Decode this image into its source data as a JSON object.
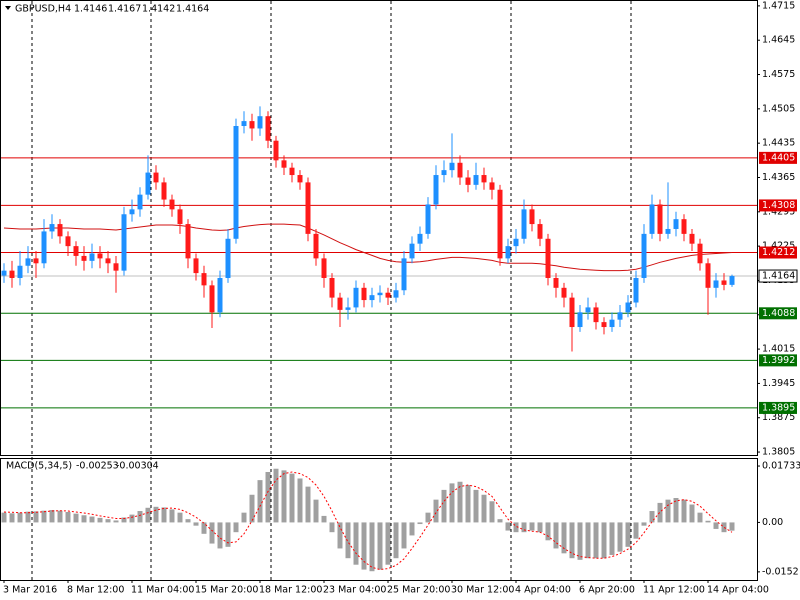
{
  "chart_data": {
    "type": "candlestick",
    "symbol": "GBPUSD,H4",
    "x": [
      "3 Mar 2016",
      null,
      null,
      null,
      null,
      null,
      null,
      null,
      "8 Mar 12:00",
      null,
      null,
      null,
      null,
      null,
      null,
      null,
      "11 Mar 04:00",
      null,
      null,
      null,
      null,
      null,
      null,
      null,
      "15 Mar 20:00",
      null,
      null,
      null,
      null,
      null,
      null,
      null,
      "18 Mar 12:00",
      null,
      null,
      null,
      null,
      null,
      null,
      null,
      "23 Mar 04:00",
      null,
      null,
      null,
      null,
      null,
      null,
      null,
      "25 Mar 20:00",
      null,
      null,
      null,
      null,
      null,
      null,
      null,
      "30 Mar 12:00",
      null,
      null,
      null,
      null,
      null,
      null,
      null,
      "4 Apr 04:00",
      null,
      null,
      null,
      null,
      null,
      null,
      null,
      "6 Apr 20:00",
      null,
      null,
      null,
      null,
      null,
      null,
      null,
      "11 Apr 12:00",
      null,
      null,
      null,
      null,
      null,
      null,
      null,
      "14 Apr 04:00",
      null,
      null,
      null
    ],
    "open": [
      1.4165,
      1.4175,
      1.416,
      1.4185,
      1.42,
      1.419,
      1.4255,
      1.427,
      1.4245,
      1.4225,
      1.4205,
      1.4195,
      1.421,
      1.42,
      1.419,
      1.4175,
      1.429,
      1.43,
      1.433,
      1.4375,
      1.4355,
      1.432,
      1.43,
      1.427,
      1.42,
      1.417,
      1.4145,
      1.409,
      1.416,
      1.424,
      1.447,
      1.448,
      1.4465,
      1.449,
      1.444,
      1.44,
      1.4385,
      1.437,
      1.4355,
      1.425,
      1.42,
      1.416,
      1.412,
      1.4095,
      1.41,
      1.414,
      1.4115,
      1.4125,
      1.413,
      1.412,
      1.4135,
      1.42,
      1.423,
      1.425,
      1.431,
      1.437,
      1.438,
      1.4395,
      1.4365,
      1.435,
      1.437,
      1.4355,
      1.434,
      1.42,
      1.4225,
      1.424,
      1.43,
      1.427,
      1.424,
      1.416,
      1.414,
      1.412,
      1.406,
      1.409,
      1.41,
      1.407,
      1.406,
      1.4075,
      1.409,
      1.411,
      1.416,
      1.425,
      1.431,
      1.425,
      1.426,
      1.428,
      1.425,
      1.423,
      1.419,
      1.414,
      1.4155,
      1.4146
    ],
    "high": [
      1.419,
      1.4195,
      1.4215,
      1.4225,
      1.4215,
      1.428,
      1.429,
      1.428,
      1.4255,
      1.4235,
      1.4225,
      1.423,
      1.4225,
      1.4215,
      1.4205,
      1.4305,
      1.432,
      1.4345,
      1.441,
      1.439,
      1.4365,
      1.433,
      1.431,
      1.428,
      1.421,
      1.4185,
      1.4155,
      1.4175,
      1.426,
      1.4485,
      1.45,
      1.4495,
      1.451,
      1.45,
      1.445,
      1.441,
      1.4395,
      1.438,
      1.4365,
      1.426,
      1.421,
      1.417,
      1.413,
      1.412,
      1.4155,
      1.415,
      1.414,
      1.4145,
      1.414,
      1.415,
      1.4215,
      1.4245,
      1.4265,
      1.4325,
      1.439,
      1.44,
      1.4455,
      1.441,
      1.438,
      1.4395,
      1.4385,
      1.4365,
      1.435,
      1.424,
      1.426,
      1.432,
      1.431,
      1.428,
      1.425,
      1.417,
      1.415,
      1.413,
      1.4105,
      1.412,
      1.411,
      1.408,
      1.409,
      1.4105,
      1.4125,
      1.4175,
      1.427,
      1.433,
      1.432,
      1.4355,
      1.4295,
      1.429,
      1.426,
      1.424,
      1.42,
      1.417,
      1.417,
      1.4167
    ],
    "low": [
      1.415,
      1.414,
      1.4145,
      1.417,
      1.416,
      1.418,
      1.424,
      1.423,
      1.4205,
      1.4185,
      1.4175,
      1.418,
      1.418,
      1.417,
      1.413,
      1.4165,
      1.4275,
      1.4285,
      1.432,
      1.434,
      1.4305,
      1.4285,
      1.425,
      1.418,
      1.4155,
      1.412,
      1.4058,
      1.408,
      1.415,
      1.423,
      1.4455,
      1.444,
      1.445,
      1.4425,
      1.4385,
      1.437,
      1.4355,
      1.434,
      1.4235,
      1.4185,
      1.414,
      1.41,
      1.406,
      1.4075,
      1.409,
      1.41,
      1.41,
      1.411,
      1.4105,
      1.411,
      1.4125,
      1.419,
      1.4215,
      1.424,
      1.43,
      1.4355,
      1.4365,
      1.435,
      1.4335,
      1.434,
      1.434,
      1.432,
      1.4185,
      1.419,
      1.421,
      1.423,
      1.4255,
      1.4225,
      1.4145,
      1.412,
      1.41,
      1.401,
      1.405,
      1.4075,
      1.4055,
      1.4045,
      1.405,
      1.406,
      1.408,
      1.41,
      1.415,
      1.424,
      1.4235,
      1.424,
      1.4245,
      1.4235,
      1.4215,
      1.4175,
      1.4085,
      1.412,
      1.4135,
      1.4142
    ],
    "close": [
      1.4175,
      1.416,
      1.4185,
      1.42,
      1.419,
      1.4255,
      1.427,
      1.4245,
      1.4225,
      1.4205,
      1.4195,
      1.421,
      1.42,
      1.419,
      1.4175,
      1.429,
      1.43,
      1.433,
      1.4375,
      1.4355,
      1.432,
      1.43,
      1.427,
      1.42,
      1.417,
      1.4145,
      1.409,
      1.416,
      1.424,
      1.447,
      1.448,
      1.4465,
      1.449,
      1.444,
      1.44,
      1.4385,
      1.437,
      1.4355,
      1.425,
      1.42,
      1.416,
      1.412,
      1.4095,
      1.41,
      1.414,
      1.4115,
      1.4125,
      1.413,
      1.412,
      1.4135,
      1.42,
      1.423,
      1.425,
      1.431,
      1.437,
      1.438,
      1.4395,
      1.4365,
      1.435,
      1.437,
      1.4355,
      1.434,
      1.42,
      1.4225,
      1.424,
      1.43,
      1.427,
      1.424,
      1.416,
      1.414,
      1.412,
      1.406,
      1.409,
      1.41,
      1.407,
      1.406,
      1.4075,
      1.409,
      1.411,
      1.416,
      1.425,
      1.431,
      1.425,
      1.426,
      1.428,
      1.425,
      1.423,
      1.419,
      1.414,
      1.4155,
      1.4146,
      1.4164
    ],
    "bull_color": "#1e90ff",
    "bear_color": "#ff1a1a",
    "ylim": [
      1.3799,
      1.4727
    ],
    "yticks": [
      1.4715,
      1.4645,
      1.4575,
      1.4505,
      1.4435,
      1.4365,
      1.4295,
      1.4225,
      1.4155,
      1.4085,
      1.4015,
      1.3945,
      1.3875,
      1.3805
    ],
    "ma": {
      "color": "#d01010",
      "values": [
        1.4262,
        1.4261,
        1.426,
        1.426,
        1.426,
        1.4261,
        1.4262,
        1.4262,
        1.4262,
        1.4261,
        1.426,
        1.426,
        1.426,
        1.4259,
        1.4258,
        1.426,
        1.4262,
        1.4264,
        1.4266,
        1.4268,
        1.4268,
        1.4268,
        1.4267,
        1.4265,
        1.4262,
        1.426,
        1.4258,
        1.4257,
        1.4258,
        1.4262,
        1.4265,
        1.4267,
        1.4269,
        1.427,
        1.427,
        1.427,
        1.4269,
        1.4268,
        1.4262,
        1.4255,
        1.4248,
        1.424,
        1.4232,
        1.4225,
        1.4218,
        1.4212,
        1.4206,
        1.42,
        1.4196,
        1.4193,
        1.4192,
        1.4192,
        1.4193,
        1.4195,
        1.4198,
        1.42,
        1.4202,
        1.4202,
        1.4201,
        1.42,
        1.4198,
        1.4196,
        1.4192,
        1.419,
        1.419,
        1.419,
        1.419,
        1.4189,
        1.4187,
        1.4185,
        1.4182,
        1.418,
        1.4178,
        1.4177,
        1.4176,
        1.4175,
        1.4175,
        1.4175,
        1.4176,
        1.4178,
        1.4182,
        1.4187,
        1.4192,
        1.4196,
        1.42,
        1.4203,
        1.4206,
        1.4208,
        1.4209,
        1.421,
        1.4211,
        1.4212
      ]
    },
    "levels": [
      {
        "value": 1.4405,
        "color": "#e00000"
      },
      {
        "value": 1.4308,
        "color": "#e00000"
      },
      {
        "value": 1.4212,
        "color": "#e00000"
      },
      {
        "value": 1.4088,
        "color": "#007000"
      },
      {
        "value": 1.3992,
        "color": "#007000"
      },
      {
        "value": 1.3895,
        "color": "#007000"
      }
    ],
    "current_color": "#c0c0c0",
    "macd": {
      "title": "MACD(5,34,5)",
      "color": "#a0a0a0",
      "signal_color": "#ff0000",
      "ylim": [
        -0.0177,
        0.0198
      ],
      "yticks": [
        0.01733,
        {
          "value": 0,
          "label": "0.00"
        },
        -0.0152
      ],
      "values": [
        0.003,
        0.0028,
        0.003,
        0.0033,
        0.0034,
        0.0036,
        0.0038,
        0.0036,
        0.0032,
        0.0027,
        0.0022,
        0.0018,
        0.0014,
        0.001,
        0.0006,
        0.0015,
        0.0024,
        0.0035,
        0.0045,
        0.0048,
        0.0046,
        0.004,
        0.003,
        0.001,
        -0.001,
        -0.0035,
        -0.0065,
        -0.008,
        -0.0075,
        -0.003,
        0.003,
        0.0085,
        0.013,
        0.0155,
        0.0165,
        0.016,
        0.015,
        0.0135,
        0.011,
        0.007,
        0.002,
        -0.003,
        -0.008,
        -0.011,
        -0.013,
        -0.0145,
        -0.015,
        -0.0145,
        -0.013,
        -0.011,
        -0.008,
        -0.004,
        -0.0005,
        0.003,
        0.007,
        0.01,
        0.012,
        0.0125,
        0.0115,
        0.01,
        0.0085,
        0.0065,
        0.001,
        -0.0025,
        -0.003,
        -0.003,
        -0.0025,
        -0.003,
        -0.0055,
        -0.008,
        -0.0095,
        -0.011,
        -0.0115,
        -0.011,
        -0.011,
        -0.011,
        -0.01,
        -0.009,
        -0.0075,
        -0.005,
        -0.001,
        0.0035,
        0.006,
        0.007,
        0.0075,
        0.007,
        0.0055,
        0.003,
        0.0005,
        -0.002,
        -0.003,
        -0.00253
      ],
      "signal": [
        0.0032,
        0.0031,
        0.003,
        0.003,
        0.0031,
        0.0033,
        0.0035,
        0.0036,
        0.0035,
        0.0032,
        0.0029,
        0.0025,
        0.002,
        0.0016,
        0.0012,
        0.0012,
        0.0016,
        0.0022,
        0.003,
        0.0038,
        0.0043,
        0.0044,
        0.004,
        0.003,
        0.0016,
        -0.0002,
        -0.0025,
        -0.0048,
        -0.0063,
        -0.006,
        -0.0035,
        0.0005,
        0.005,
        0.0095,
        0.013,
        0.015,
        0.0155,
        0.015,
        0.0138,
        0.0115,
        0.008,
        0.0035,
        -0.0015,
        -0.006,
        -0.0095,
        -0.012,
        -0.0138,
        -0.0145,
        -0.0142,
        -0.0132,
        -0.0112,
        -0.008,
        -0.0045,
        -0.0008,
        0.003,
        0.0065,
        0.0093,
        0.011,
        0.0115,
        0.011,
        0.0098,
        0.008,
        0.0045,
        0.001,
        -0.0012,
        -0.0023,
        -0.0027,
        -0.003,
        -0.0042,
        -0.0062,
        -0.008,
        -0.0095,
        -0.0105,
        -0.0108,
        -0.011,
        -0.011,
        -0.0105,
        -0.0096,
        -0.0082,
        -0.0062,
        -0.0032,
        0.0002,
        0.0032,
        0.0053,
        0.0066,
        0.007,
        0.0065,
        0.005,
        0.0027,
        0.0005,
        -0.0015,
        -0.00304
      ]
    }
  }
}
